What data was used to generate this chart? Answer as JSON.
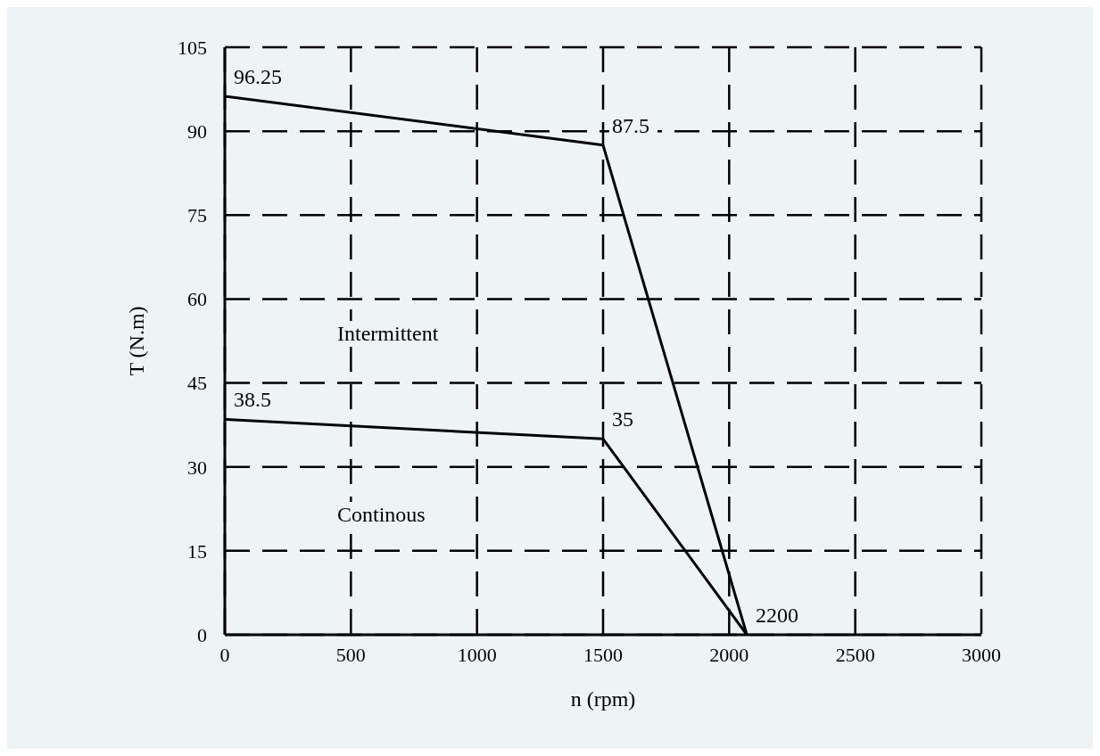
{
  "chart_data": {
    "type": "line",
    "xlabel": "n (rpm)",
    "ylabel": "T (N.m)",
    "xlim": [
      0,
      3000
    ],
    "xticks": [
      0,
      500,
      1000,
      1500,
      2000,
      2500,
      3000
    ],
    "ylim": [
      0,
      105
    ],
    "yticks": [
      0,
      15,
      30,
      45,
      60,
      75,
      90,
      105
    ],
    "grid": true,
    "marker": "none",
    "line_style": "solid",
    "series": [
      {
        "x": [
          0,
          1500,
          2070
        ],
        "values": [
          96.25,
          87.5,
          0
        ],
        "color": "#000000"
      },
      {
        "x": [
          0,
          1500,
          2070
        ],
        "values": [
          38.5,
          35,
          0
        ],
        "color": "#000000"
      }
    ],
    "annotations": [
      {
        "text": "96.25",
        "x": 0,
        "y": 96.25
      },
      {
        "text": "87.5",
        "x": 1500,
        "y": 87.5
      },
      {
        "text": "38.5",
        "x": 0,
        "y": 38.5
      },
      {
        "text": "35",
        "x": 1500,
        "y": 35
      },
      {
        "text": "2200",
        "x": 2070,
        "y": 0
      },
      "Intermittent",
      "Continous"
    ]
  }
}
